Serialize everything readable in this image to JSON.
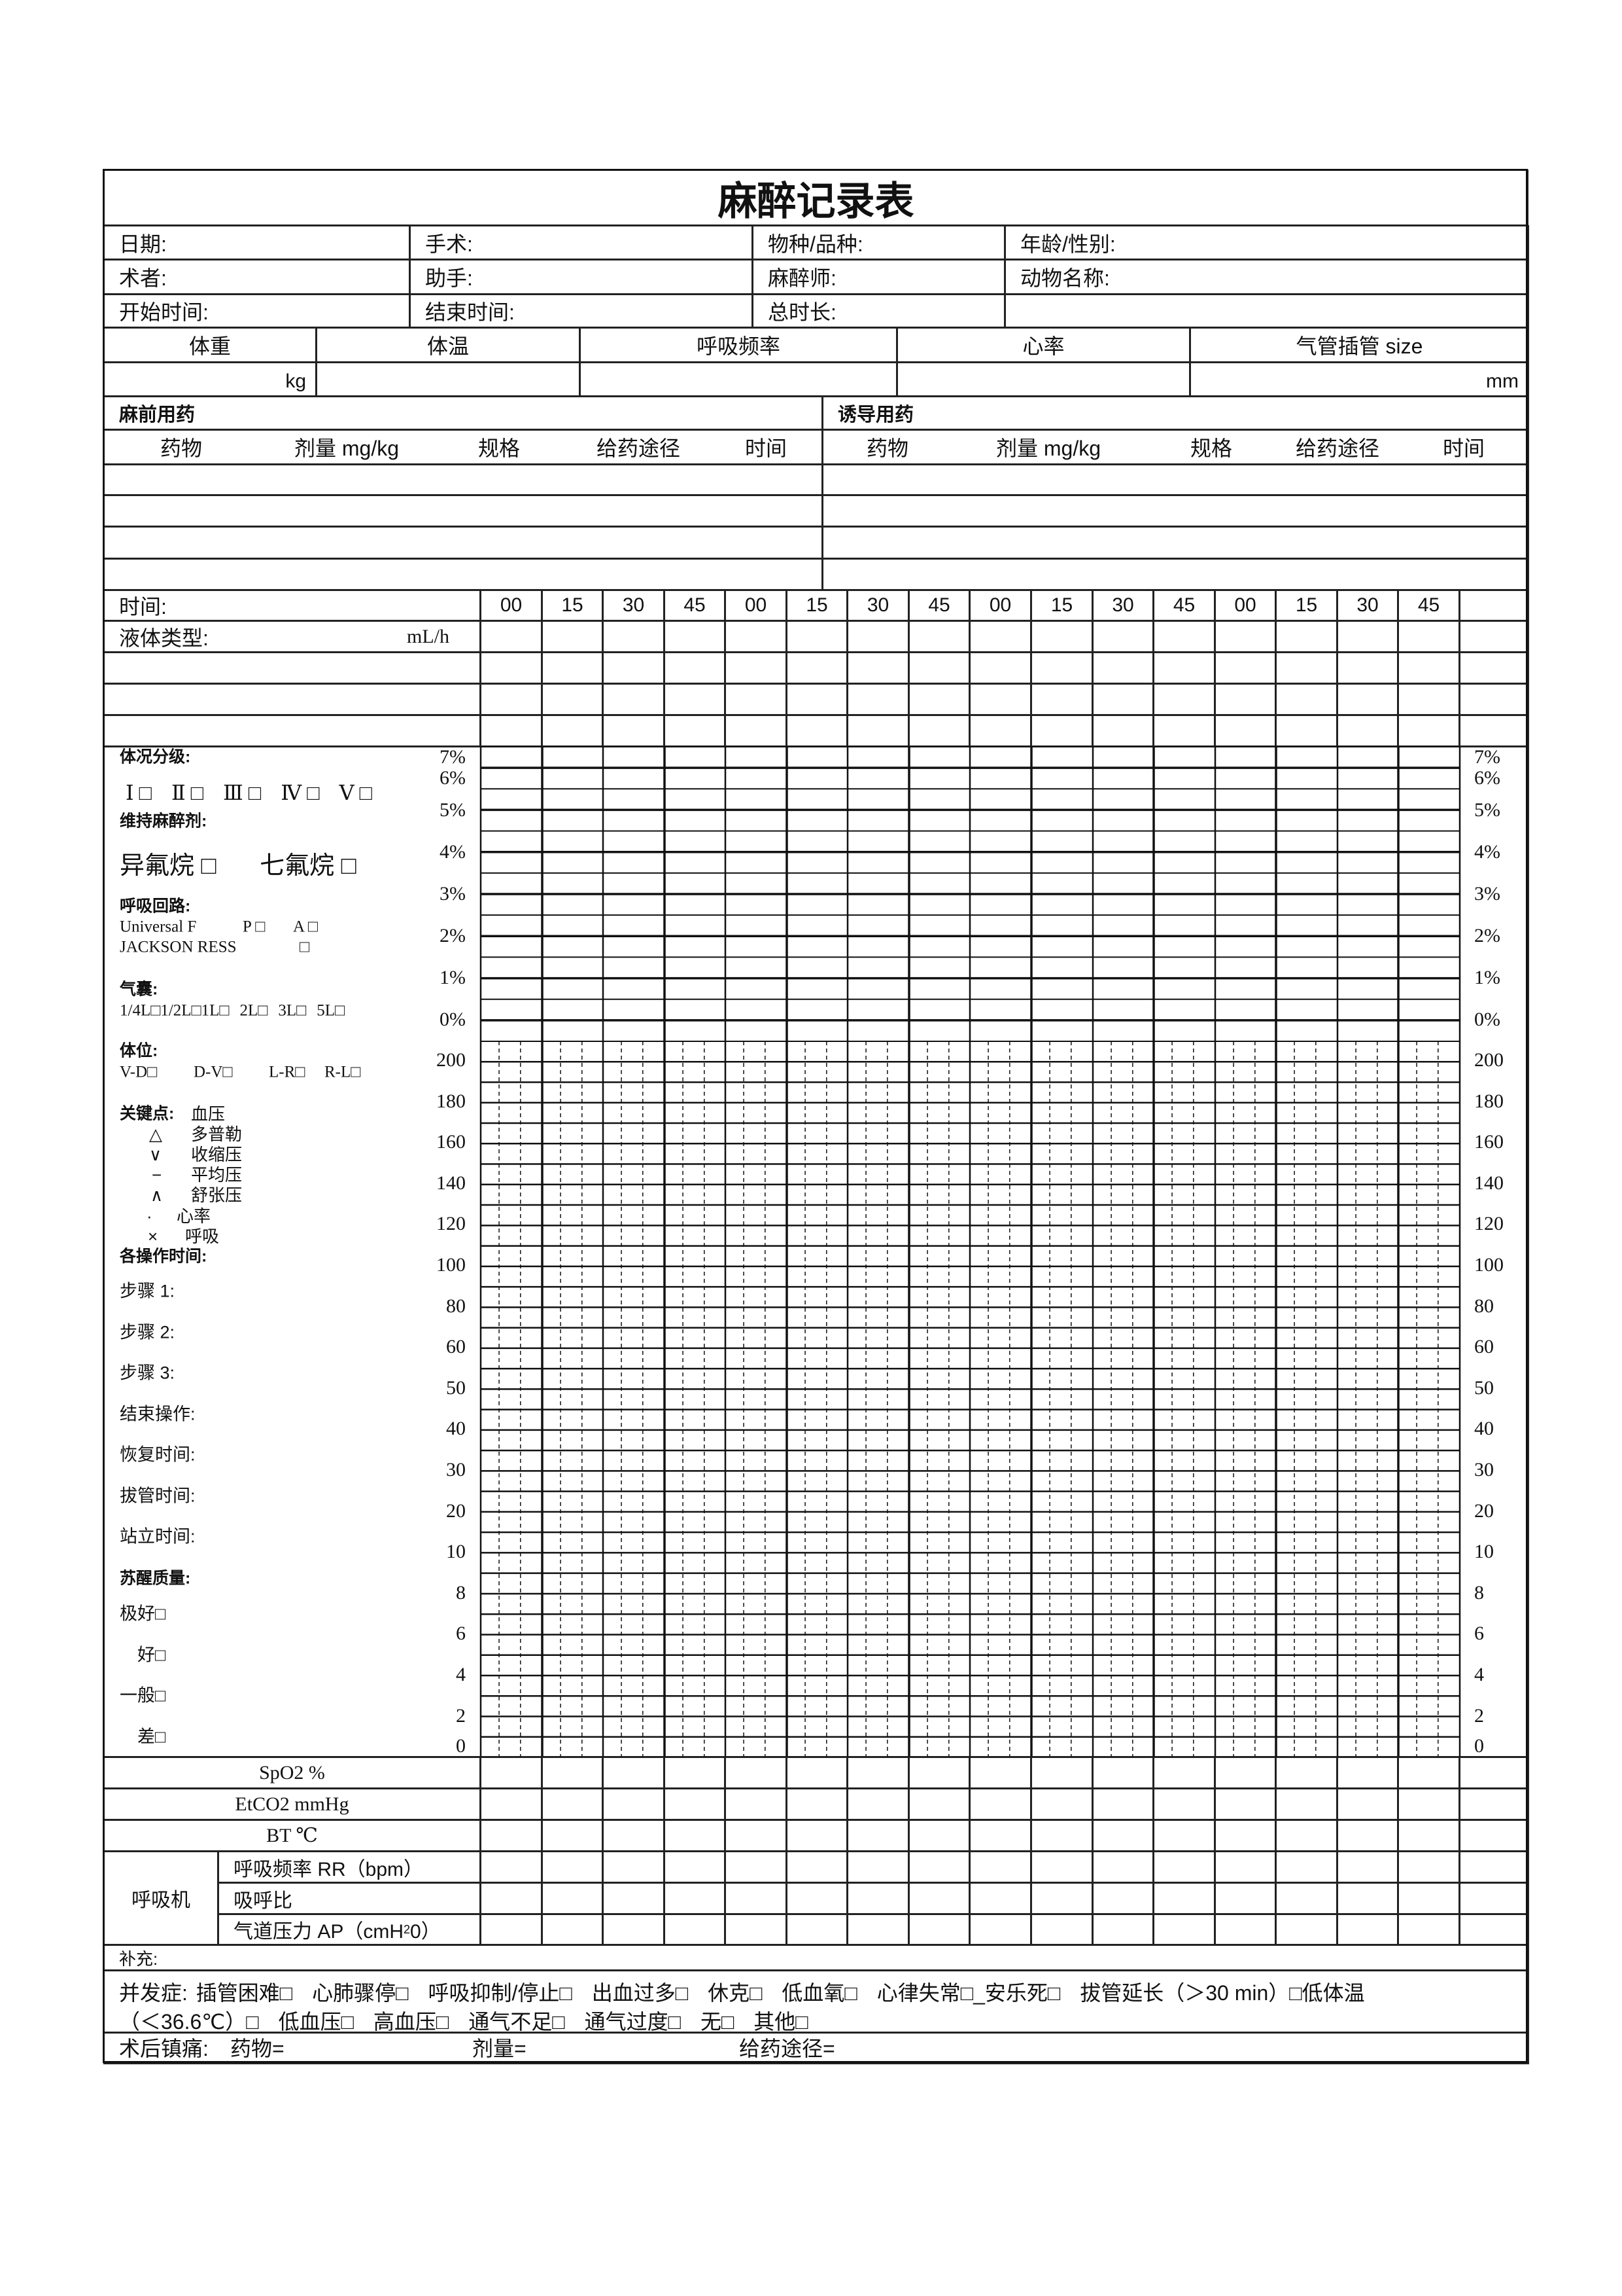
{
  "title": "麻醉记录表",
  "info": {
    "rows": [
      [
        "日期:",
        "手术:",
        "物种/品种:",
        "年龄/性别:"
      ],
      [
        "术者:",
        "助手:",
        "麻醉师:",
        "动物名称:"
      ],
      [
        "开始时间:",
        "结束时间:",
        "总时长:",
        ""
      ]
    ]
  },
  "vitals": {
    "headers": [
      "体重",
      "体温",
      "呼吸频率",
      "心率",
      "气管插管  size"
    ],
    "units": [
      "kg",
      "",
      "",
      "",
      "mm"
    ]
  },
  "premed": {
    "title": "麻前用药",
    "columns": [
      "药物",
      "剂量 mg/kg",
      "规格",
      "给药途径",
      "时间"
    ]
  },
  "induction": {
    "title": "诱导用药",
    "columns": [
      "药物",
      "剂量 mg/kg",
      "规格",
      "给药途径",
      "时间"
    ]
  },
  "timeline": {
    "label": "时间:",
    "ticks": [
      "00",
      "15",
      "30",
      "45",
      "00",
      "15",
      "30",
      "45",
      "00",
      "15",
      "30",
      "45",
      "00",
      "15",
      "30",
      "45"
    ]
  },
  "fluid": {
    "label": "液体类型:",
    "unit": "mL/h"
  },
  "left_panel": {
    "asa": {
      "title": "体况分级:",
      "options": [
        "Ⅰ □",
        "Ⅱ □",
        "Ⅲ  □",
        "Ⅳ  □",
        "Ⅴ  □"
      ]
    },
    "maintenance": {
      "title": "维持麻醉剂:",
      "options": [
        "异氟烷  □",
        "七氟烷  □"
      ]
    },
    "circuit": {
      "title": "呼吸回路:",
      "universal": "Universal F",
      "p": "P □",
      "a": "A □",
      "jackson": "JACKSON RESS",
      "jackson_box": "□"
    },
    "bag": {
      "title": "气囊:",
      "options": [
        "1/4L□",
        "1/2L□",
        "1L□",
        "2L□",
        "3L□",
        "5L□"
      ]
    },
    "position": {
      "title": "体位:",
      "options": [
        "V-D□",
        "D-V□",
        "L-R□",
        "R-L□"
      ]
    },
    "legend": {
      "title": "关键点:",
      "group": "血压",
      "items": [
        {
          "symbol": "△",
          "label": "多普勒"
        },
        {
          "symbol": "∨",
          "label": "收缩压"
        },
        {
          "symbol": "−",
          "label": "平均压"
        },
        {
          "symbol": "∧",
          "label": "舒张压"
        },
        {
          "symbol": "·",
          "label": "心率"
        },
        {
          "symbol": "×",
          "label": "呼吸"
        }
      ]
    },
    "op_times": {
      "title": "各操作时间:",
      "items": [
        "步骤 1:",
        "步骤 2:",
        "步骤 3:",
        "结束操作:",
        "恢复时间:",
        "拔管时间:",
        "站立时间:"
      ]
    },
    "recovery": {
      "title": "苏醒质量:",
      "items": [
        "极好□",
        "好□",
        "一般□",
        "差□"
      ]
    }
  },
  "chart_axes": {
    "percent_labels": [
      "7%",
      "6%",
      "5%",
      "4%",
      "3%",
      "2%",
      "1%",
      "0%"
    ],
    "value_labels": [
      "200",
      "180",
      "160",
      "140",
      "120",
      "100",
      "80",
      "60",
      "50",
      "40",
      "30",
      "20",
      "10",
      "8",
      "6",
      "4",
      "2",
      "0"
    ]
  },
  "monitor_rows": [
    "SpO2 %",
    "EtCO2 mmHg",
    "BT  ℃"
  ],
  "ventilator": {
    "label": "呼吸机",
    "rows": [
      "呼吸频率 RR（bpm）",
      "吸呼比",
      "气道压力 AP（cmH"
    ],
    "ap_subscript": "2",
    "ap_suffix": "0）"
  },
  "supplement": "补充:",
  "complications": {
    "label": "并发症:",
    "line1": [
      "插管困难□",
      "心肺骤停□",
      "呼吸抑制/停止□",
      "出血过多□",
      "休克□",
      "低血氧□",
      "心律失常□_安乐死□",
      "拔管延长（＞30 min）□低体温"
    ],
    "line2": [
      "（＜36.6℃）□",
      "低血压□",
      "高血压□",
      "通气不足□",
      "通气过度□",
      "无□",
      "其他□"
    ]
  },
  "analgesia": {
    "label": "术后镇痛:",
    "drug": "药物=",
    "dose": "剂量=",
    "route": "给药途径="
  }
}
